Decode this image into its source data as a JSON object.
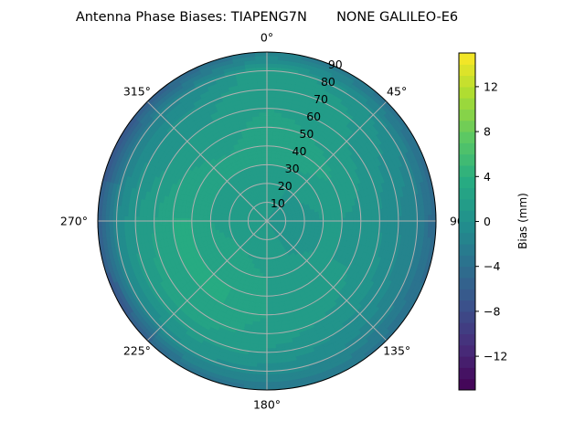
{
  "chart_data": {
    "type": "heatmap",
    "projection": "polar",
    "title": "Antenna Phase Biases: TIAPENG7N       NONE GALILEO-E6",
    "theta_zero": "north",
    "theta_direction": "clockwise",
    "theta_tick_labels": [
      "0°",
      "45°",
      "90°",
      "135°",
      "180°",
      "225°",
      "270°",
      "315°"
    ],
    "theta_ticks": [
      0,
      45,
      90,
      135,
      180,
      225,
      270,
      315
    ],
    "r_ticks": [
      10,
      20,
      30,
      40,
      50,
      60,
      70,
      80,
      90
    ],
    "r_tick_labels": [
      "10",
      "20",
      "30",
      "40",
      "50",
      "60",
      "70",
      "80",
      "90"
    ],
    "rlim": [
      0,
      90
    ],
    "grid": true,
    "colormap": "viridis",
    "colorbar": {
      "label": "Bias (mm)",
      "range": [
        -15,
        15
      ],
      "level_step": 1,
      "ticks": [
        -12,
        -8,
        -4,
        0,
        4,
        8,
        12
      ],
      "tick_labels": [
        "−12",
        "−8",
        "−4",
        "0",
        "4",
        "8",
        "12"
      ]
    },
    "azimuth_deg": [
      0,
      30,
      60,
      90,
      120,
      150,
      180,
      210,
      240,
      270,
      300,
      330
    ],
    "zenith_deg": [
      0,
      10,
      20,
      30,
      40,
      50,
      60,
      70,
      80,
      90
    ],
    "values_mm": [
      [
        1,
        1,
        1,
        1,
        1,
        1,
        1,
        1,
        1,
        1,
        1,
        1
      ],
      [
        1,
        1,
        0.5,
        0.5,
        0.5,
        1,
        1,
        1,
        1,
        1,
        1,
        1
      ],
      [
        1.5,
        1,
        1,
        0.5,
        0.5,
        1,
        1.5,
        2,
        2,
        1.5,
        1.5,
        1.5
      ],
      [
        2,
        2,
        1.5,
        1,
        1,
        1.5,
        2,
        2.5,
        2.5,
        2,
        2,
        2
      ],
      [
        2.5,
        2.5,
        2,
        1,
        1,
        1.5,
        2,
        3,
        3,
        3,
        2.5,
        2
      ],
      [
        2.5,
        2,
        1.5,
        0.5,
        1,
        1.5,
        2,
        3,
        3,
        3,
        2,
        1.5
      ],
      [
        2,
        1.5,
        0.5,
        0,
        0.5,
        1,
        1.5,
        2.5,
        2.5,
        2,
        1,
        1
      ],
      [
        2,
        1.5,
        0,
        -1,
        -0.5,
        0,
        1,
        1.5,
        1.5,
        1,
        0,
        0.5
      ],
      [
        2,
        0.5,
        -1,
        -2,
        -2,
        -1,
        -0.5,
        0,
        -1,
        -1,
        -2,
        -1
      ],
      [
        -2,
        -3,
        -4,
        -5,
        -4,
        -3,
        -3,
        -4,
        -7,
        -6,
        -7,
        -5
      ]
    ]
  }
}
